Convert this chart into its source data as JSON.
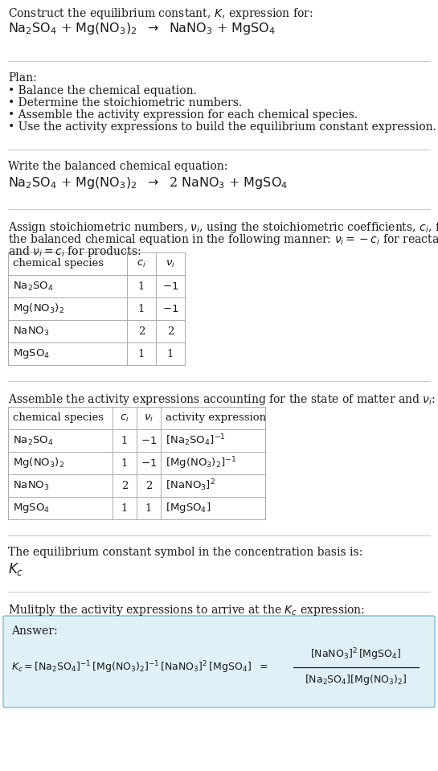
{
  "bg_color": "#ffffff",
  "text_color": "#1a1a1a",
  "sep_color": "#cccccc",
  "table_line_color": "#aaaaaa",
  "answer_box_fill": "#dff0f7",
  "answer_box_edge": "#7bbcd4",
  "sections": {
    "title_line1": "Construct the equilibrium constant, $K$, expression for:",
    "title_line2": "$\\mathrm{Na_2SO_4}$ + $\\mathrm{Mg(NO_3)_2}$  $\\rightarrow$  $\\mathrm{NaNO_3}$ + $\\mathrm{MgSO_4}$",
    "plan_header": "Plan:",
    "plan_items": [
      "\\bullet  Balance the chemical equation.",
      "\\bullet  Determine the stoichiometric numbers.",
      "\\bullet  Assemble the activity expression for each chemical species.",
      "\\bullet  Use the activity expressions to build the equilibrium constant expression."
    ],
    "balanced_header": "Write the balanced chemical equation:",
    "balanced_eq": "$\\mathrm{Na_2SO_4}$ + $\\mathrm{Mg(NO_3)_2}$  $\\rightarrow$  2 $\\mathrm{NaNO_3}$ + $\\mathrm{MgSO_4}$",
    "stoich_line1": "Assign stoichiometric numbers, $\\nu_i$, using the stoichiometric coefficients, $c_i$, from",
    "stoich_line2": "the balanced chemical equation in the following manner: $\\nu_i = -c_i$ for reactants",
    "stoich_line3": "and $\\nu_i = c_i$ for products:",
    "table1_headers": [
      "chemical species",
      "$c_i$",
      "$\\nu_i$"
    ],
    "table1_rows": [
      [
        "$\\mathrm{Na_2SO_4}$",
        "1",
        "$-1$"
      ],
      [
        "$\\mathrm{Mg(NO_3)_2}$",
        "1",
        "$-1$"
      ],
      [
        "$\\mathrm{NaNO_3}$",
        "2",
        "2"
      ],
      [
        "$\\mathrm{MgSO_4}$",
        "1",
        "1"
      ]
    ],
    "activity_header": "Assemble the activity expressions accounting for the state of matter and $\\nu_i$:",
    "table2_headers": [
      "chemical species",
      "$c_i$",
      "$\\nu_i$",
      "activity expression"
    ],
    "table2_rows": [
      [
        "$\\mathrm{Na_2SO_4}$",
        "1",
        "$-1$",
        "$[\\mathrm{Na_2SO_4}]^{-1}$"
      ],
      [
        "$\\mathrm{Mg(NO_3)_2}$",
        "1",
        "$-1$",
        "$[\\mathrm{Mg(NO_3)_2}]^{-1}$"
      ],
      [
        "$\\mathrm{NaNO_3}$",
        "2",
        "2",
        "$[\\mathrm{NaNO_3}]^{2}$"
      ],
      [
        "$\\mathrm{MgSO_4}$",
        "1",
        "1",
        "$[\\mathrm{MgSO_4}]$"
      ]
    ],
    "kc_header": "The equilibrium constant symbol in the concentration basis is:",
    "kc_symbol": "$K_c$",
    "multiply_header": "Mulitply the activity expressions to arrive at the $K_c$ expression:",
    "answer_label": "Answer:",
    "kc_eq": "$K_c = [\\mathrm{Na_2SO_4}]^{-1}\\,[\\mathrm{Mg(NO_3)_2}]^{-1}\\,[\\mathrm{NaNO_3}]^{2}\\,[\\mathrm{MgSO_4}]\\; =$",
    "frac_num": "$[\\mathrm{NaNO_3}]^{2}\\,[\\mathrm{MgSO_4}]$",
    "frac_den": "$[\\mathrm{Na_2SO_4}][\\mathrm{Mg(NO_3)_2}]$"
  }
}
